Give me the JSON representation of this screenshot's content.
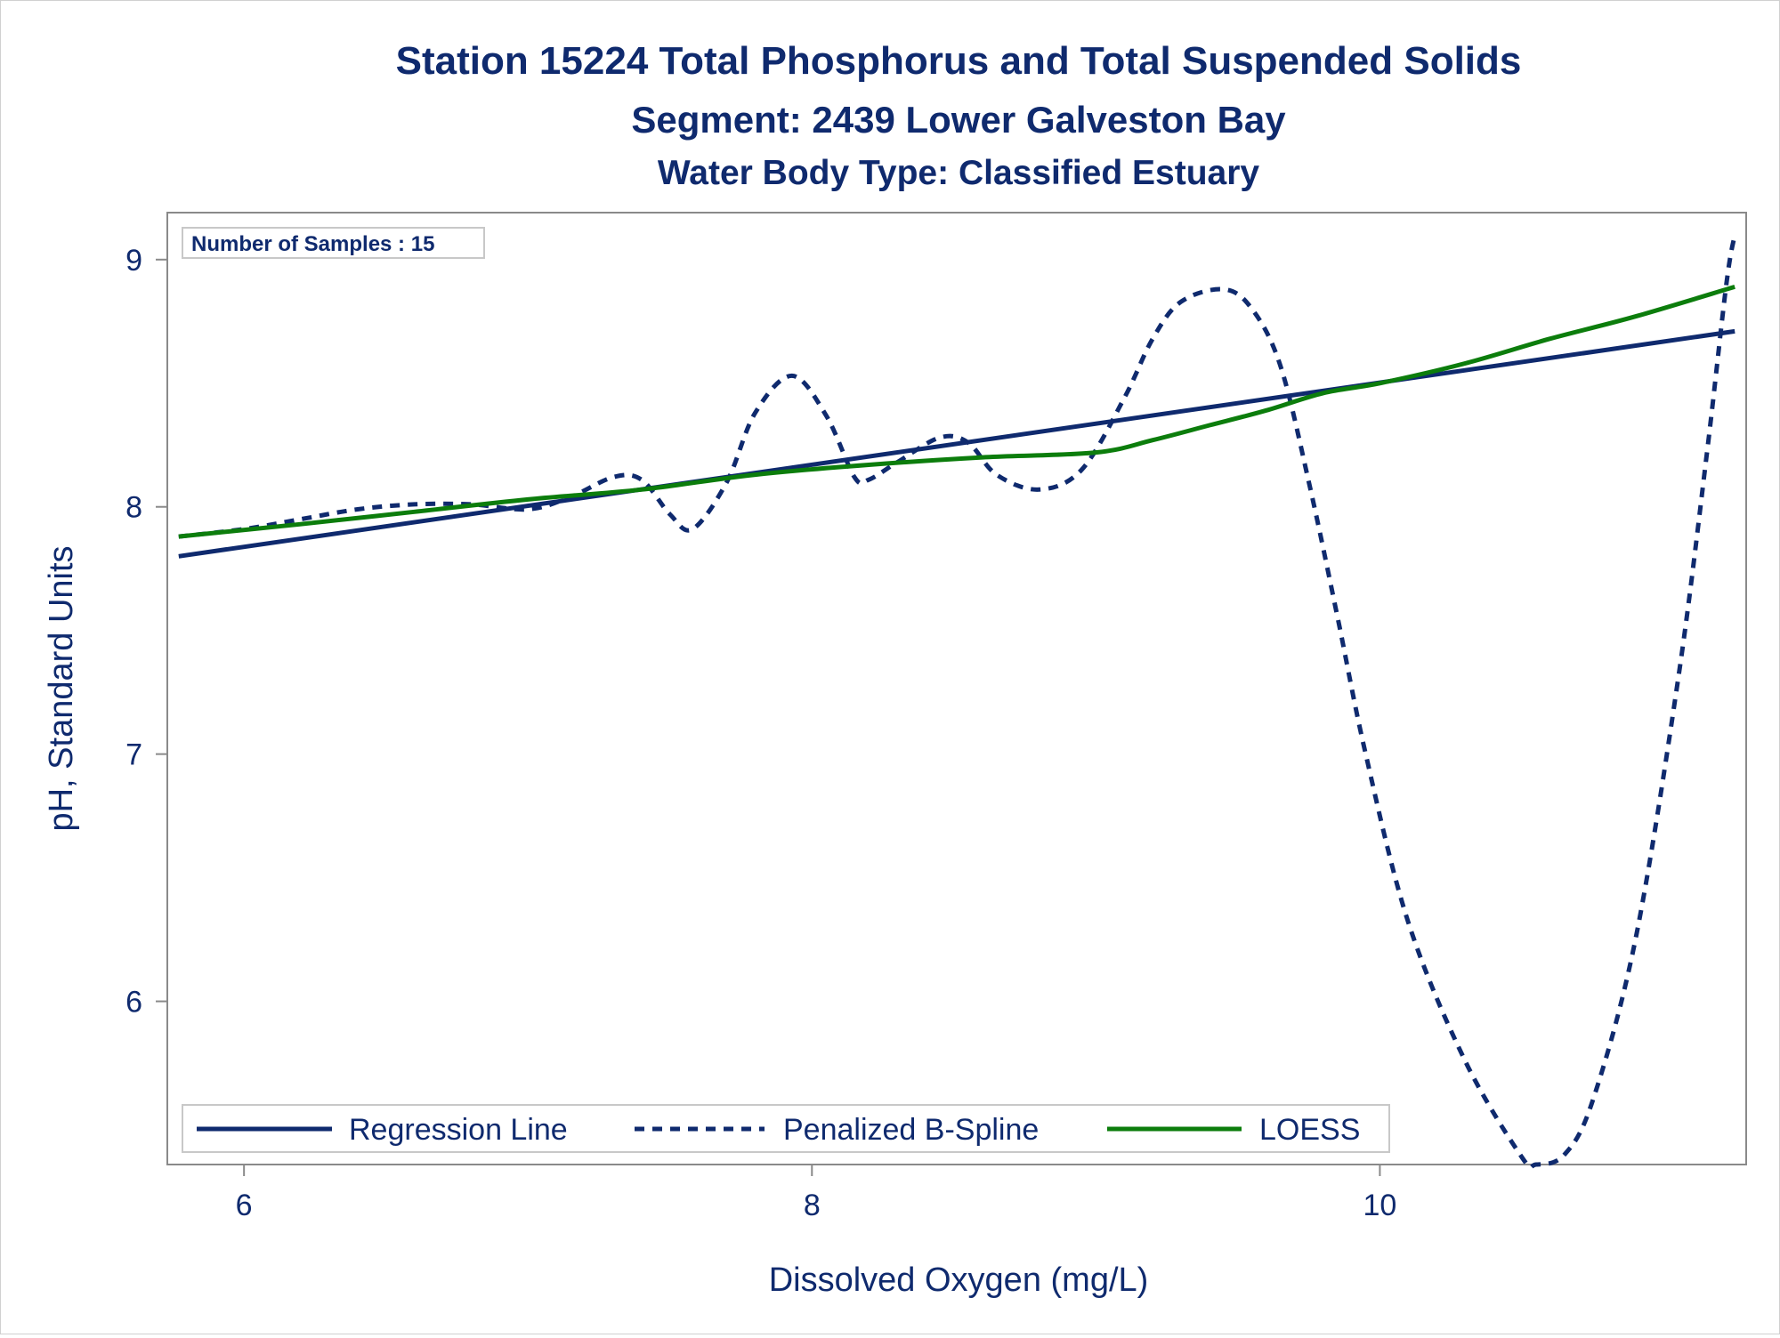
{
  "chart_data": {
    "type": "line",
    "title": "Station 15224  Total Phosphorus and Total Suspended Solids",
    "subtitle": "Segment: 2439  Lower Galveston Bay",
    "subtitle2": "Water Body Type: Classified Estuary",
    "xlabel": "Dissolved Oxygen (mg/L)",
    "ylabel": "pH, Standard Units",
    "annotation": "Number of Samples : 15",
    "xlim": [
      5.73,
      11.29
    ],
    "ylim": [
      5.34,
      9.19
    ],
    "xticks": [
      6,
      8,
      10
    ],
    "xtick_labels": [
      "6",
      "8",
      "10"
    ],
    "yticks": [
      6,
      7,
      8,
      9
    ],
    "ytick_labels": [
      "6",
      "7",
      "8",
      "9"
    ],
    "grid": false,
    "legend_position": "bottom-inside",
    "series": [
      {
        "name": "Regression Line",
        "style": "solid",
        "color": "#0f2a6e",
        "x": [
          5.77,
          11.25
        ],
        "y": [
          7.8,
          8.71
        ]
      },
      {
        "name": "Penalized B-Spline",
        "style": "dashed",
        "color": "#0f2a6e",
        "x": [
          5.77,
          6.0,
          6.2,
          6.4,
          6.6,
          6.8,
          7.0,
          7.15,
          7.3,
          7.4,
          7.5,
          7.58,
          7.7,
          7.8,
          7.93,
          8.05,
          8.15,
          8.2,
          8.3,
          8.45,
          8.55,
          8.65,
          8.8,
          8.95,
          9.1,
          9.2,
          9.3,
          9.45,
          9.55,
          9.65,
          9.75,
          9.85,
          9.95,
          10.1,
          10.3,
          10.5,
          10.55,
          10.65,
          10.75,
          10.9,
          11.05,
          11.15,
          11.22,
          11.25
        ],
        "y": [
          7.88,
          7.91,
          7.95,
          7.99,
          8.01,
          8.01,
          7.99,
          8.04,
          8.12,
          8.11,
          7.97,
          7.91,
          8.1,
          8.38,
          8.53,
          8.37,
          8.12,
          8.11,
          8.18,
          8.28,
          8.26,
          8.13,
          8.07,
          8.15,
          8.44,
          8.68,
          8.83,
          8.88,
          8.8,
          8.57,
          8.1,
          7.56,
          7.0,
          6.32,
          5.76,
          5.37,
          5.34,
          5.38,
          5.6,
          6.25,
          7.3,
          8.2,
          8.9,
          9.1
        ]
      },
      {
        "name": "LOESS",
        "style": "solid",
        "color": "#0c7d0c",
        "x": [
          5.77,
          6.2,
          6.6,
          7.0,
          7.4,
          7.8,
          8.2,
          8.6,
          9.0,
          9.2,
          9.4,
          9.6,
          9.8,
          10.0,
          10.3,
          10.6,
          10.9,
          11.25
        ],
        "y": [
          7.88,
          7.93,
          7.98,
          8.03,
          8.07,
          8.13,
          8.17,
          8.2,
          8.22,
          8.27,
          8.33,
          8.39,
          8.46,
          8.5,
          8.58,
          8.68,
          8.77,
          8.89
        ]
      }
    ]
  }
}
